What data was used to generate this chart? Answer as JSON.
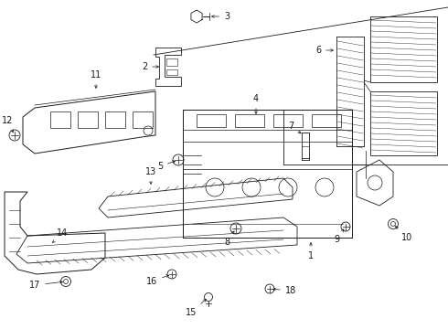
{
  "bg_color": "#ffffff",
  "line_color": "#1a1a1a",
  "fig_width": 4.9,
  "fig_height": 3.6,
  "dpi": 100,
  "label_fontsize": 7.0,
  "arrow_lw": 0.5,
  "part_lw": 0.7
}
